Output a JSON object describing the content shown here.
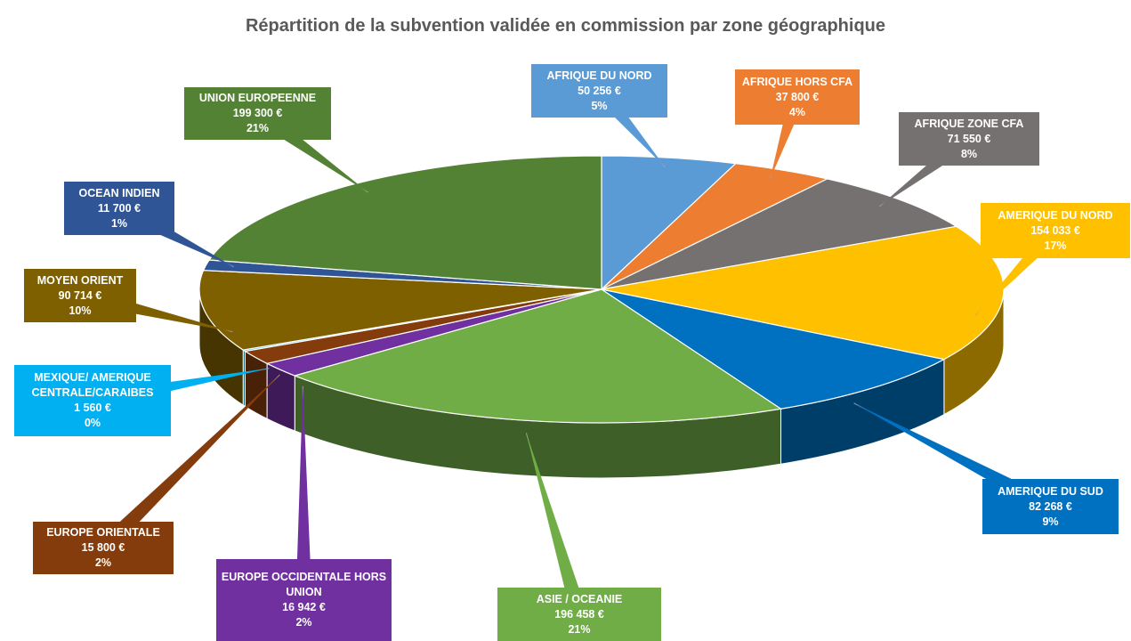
{
  "chart_data": {
    "type": "pie3d",
    "title": "Répartition de la subvention validée en commission par zone géographique",
    "categories": [
      "AFRIQUE DU NORD",
      "AFRIQUE HORS CFA",
      "AFRIQUE ZONE CFA",
      "AMERIQUE DU NORD",
      "AMERIQUE DU SUD",
      "ASIE / OCEANIE",
      "EUROPE OCCIDENTALE HORS UNION",
      "EUROPE ORIENTALE",
      "MEXIQUE/ AMERIQUE CENTRALE/CARAIBES",
      "MOYEN ORIENT",
      "OCEAN INDIEN",
      "UNION EUROPEENNE"
    ],
    "values": [
      50256,
      37800,
      71550,
      154033,
      82268,
      196458,
      16942,
      15800,
      1560,
      90714,
      11700,
      199300
    ],
    "value_labels": [
      "50 256 €",
      "37 800 €",
      "71 550 €",
      "154 033 €",
      "82 268 €",
      "196 458 €",
      "16 942 €",
      "15 800 €",
      "1 560 €",
      "90 714 €",
      "11 700 €",
      "199 300 €"
    ],
    "percent_labels": [
      "5%",
      "4%",
      "8%",
      "17%",
      "9%",
      "21%",
      "2%",
      "2%",
      "0%",
      "10%",
      "1%",
      "21%"
    ],
    "colors": [
      "#5b9bd5",
      "#ed7d31",
      "#767171",
      "#ffc000",
      "#0070c0",
      "#70ad47",
      "#7030a0",
      "#843c0c",
      "#00b0f0",
      "#7f6000",
      "#2f5597",
      "#548235"
    ]
  }
}
